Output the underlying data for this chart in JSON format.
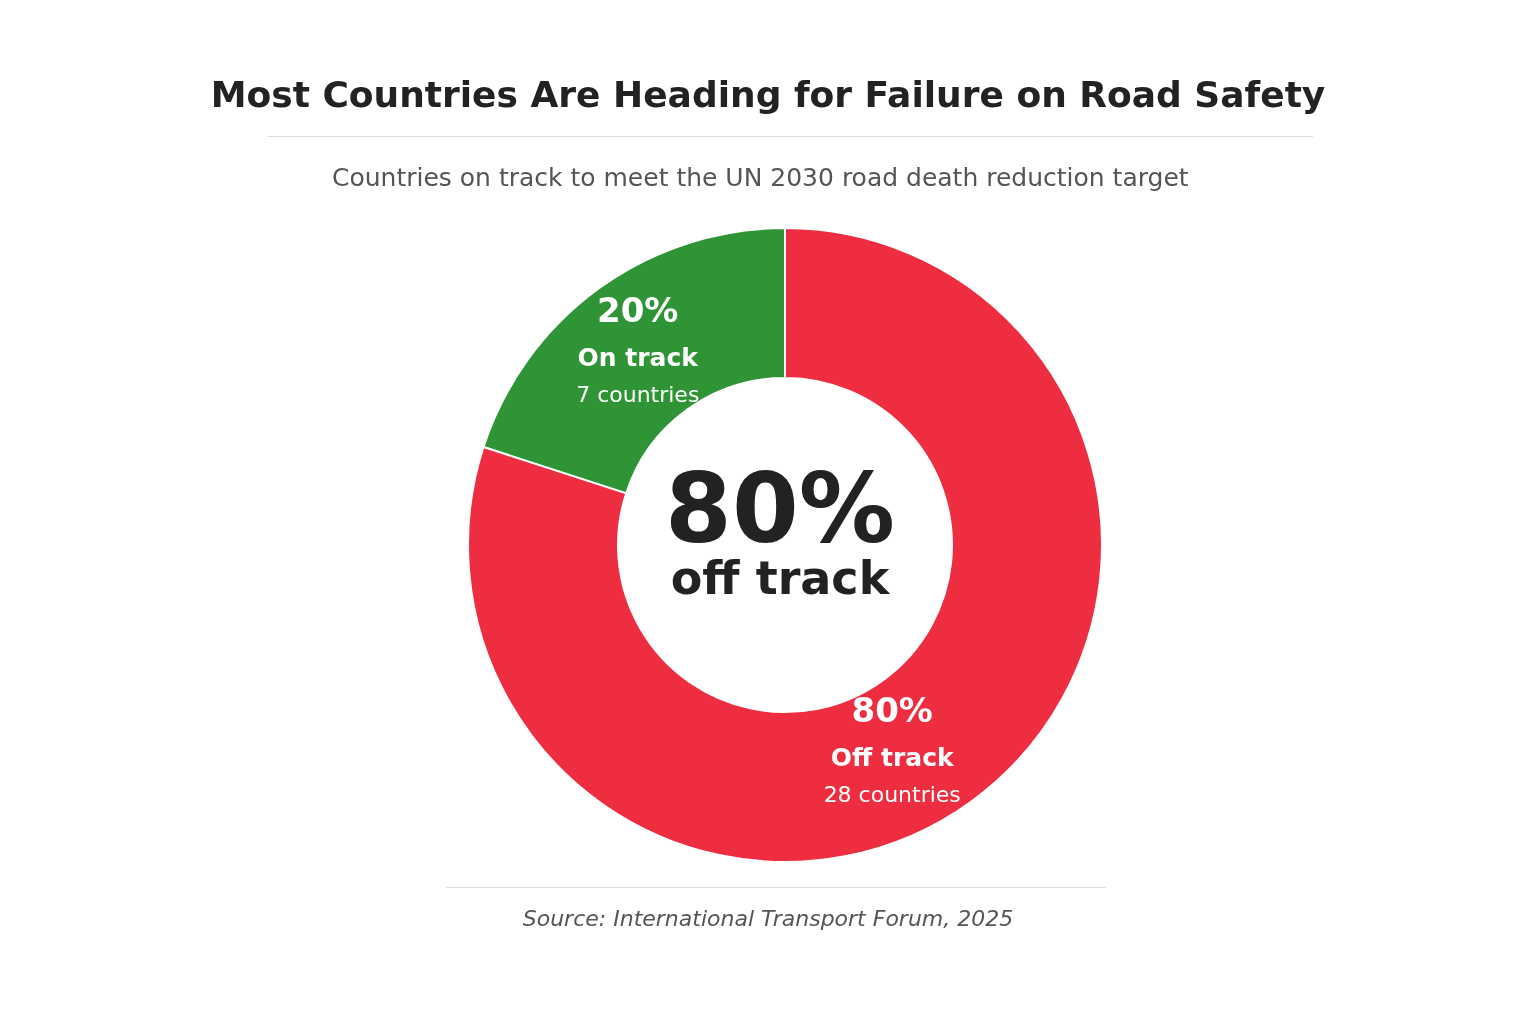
{
  "chart_data": {
    "type": "donut",
    "title": "Most Countries Are Heading for Failure on Road Safety",
    "subtitle": "Countries on track to meet the UN 2030 road death reduction target",
    "categories": [
      "On track",
      "Off track"
    ],
    "values": [
      20,
      80
    ],
    "colors": [
      "#2e9436",
      "#ee2e40"
    ],
    "value_labels": [
      "20%",
      "80%"
    ],
    "annotations": [
      "7 countries",
      "28 countries",
      "80%",
      "off track",
      "Source: International Transport Forum, 2025"
    ]
  }
}
